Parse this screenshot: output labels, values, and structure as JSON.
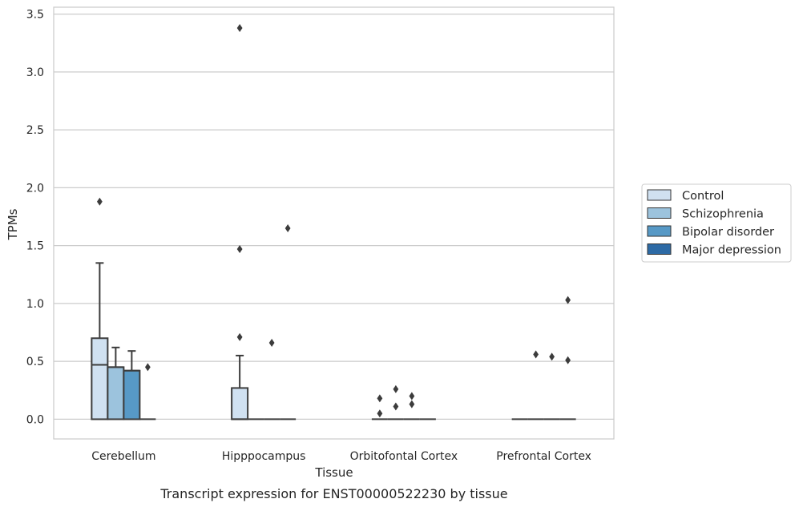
{
  "chart_data": {
    "type": "box",
    "caption": "Transcript expression for ENST00000522230 by tissue",
    "xlabel": "Tissue",
    "ylabel": "TPMs",
    "ylim": [
      -0.17,
      3.56
    ],
    "yticks": [
      "0.0",
      "0.5",
      "1.0",
      "1.5",
      "2.0",
      "2.5",
      "3.0",
      "3.5"
    ],
    "ytick_values": [
      0,
      0.5,
      1.0,
      1.5,
      2.0,
      2.5,
      3.0,
      3.5
    ],
    "grid": "horizontal",
    "legend_position": "right",
    "categories": [
      "Cerebellum",
      "Hipppocampus",
      "Orbitofontal Cortex",
      "Prefrontal Cortex"
    ],
    "series": [
      {
        "name": "Control",
        "color": "#d0e1f1",
        "boxes": [
          {
            "q1": 0,
            "median": 0.47,
            "q3": 0.7,
            "whisker_low": 0,
            "whisker_high": 1.35,
            "outliers": [
              1.88
            ]
          },
          {
            "q1": 0,
            "median": 0,
            "q3": 0.27,
            "whisker_low": 0,
            "whisker_high": 0.55,
            "outliers": [
              0.71,
              1.47,
              3.38
            ]
          },
          {
            "q1": 0,
            "median": 0,
            "q3": 0,
            "whisker_low": 0,
            "whisker_high": 0,
            "outliers": [
              0.05,
              0.18
            ]
          },
          {
            "q1": 0,
            "median": 0,
            "q3": 0,
            "whisker_low": 0,
            "whisker_high": 0,
            "outliers": []
          }
        ]
      },
      {
        "name": "Schizophrenia",
        "color": "#9cc3dd",
        "boxes": [
          {
            "q1": 0,
            "median": 0.45,
            "q3": 0.45,
            "whisker_low": 0,
            "whisker_high": 0.62,
            "outliers": []
          },
          {
            "q1": 0,
            "median": 0,
            "q3": 0,
            "whisker_low": 0,
            "whisker_high": 0,
            "outliers": []
          },
          {
            "q1": 0,
            "median": 0,
            "q3": 0,
            "whisker_low": 0,
            "whisker_high": 0,
            "outliers": [
              0.11,
              0.26
            ]
          },
          {
            "q1": 0,
            "median": 0,
            "q3": 0,
            "whisker_low": 0,
            "whisker_high": 0,
            "outliers": [
              0.56
            ]
          }
        ]
      },
      {
        "name": "Bipolar disorder",
        "color": "#5799c6",
        "boxes": [
          {
            "q1": 0,
            "median": 0.42,
            "q3": 0.42,
            "whisker_low": 0,
            "whisker_high": 0.59,
            "outliers": []
          },
          {
            "q1": 0,
            "median": 0,
            "q3": 0,
            "whisker_low": 0,
            "whisker_high": 0,
            "outliers": [
              0.66
            ]
          },
          {
            "q1": 0,
            "median": 0,
            "q3": 0,
            "whisker_low": 0,
            "whisker_high": 0,
            "outliers": [
              0.13,
              0.2
            ]
          },
          {
            "q1": 0,
            "median": 0,
            "q3": 0,
            "whisker_low": 0,
            "whisker_high": 0,
            "outliers": [
              0.54
            ]
          }
        ]
      },
      {
        "name": "Major depression",
        "color": "#2d6aa5",
        "boxes": [
          {
            "q1": 0,
            "median": 0,
            "q3": 0,
            "whisker_low": 0,
            "whisker_high": 0,
            "outliers": [
              0.45
            ]
          },
          {
            "q1": 0,
            "median": 0,
            "q3": 0,
            "whisker_low": 0,
            "whisker_high": 0,
            "outliers": [
              1.65
            ]
          },
          {
            "q1": 0,
            "median": 0,
            "q3": 0,
            "whisker_low": 0,
            "whisker_high": 0,
            "outliers": []
          },
          {
            "q1": 0,
            "median": 0,
            "q3": 0,
            "whisker_low": 0,
            "whisker_high": 0,
            "outliers": [
              0.51,
              1.03
            ]
          }
        ]
      }
    ]
  }
}
